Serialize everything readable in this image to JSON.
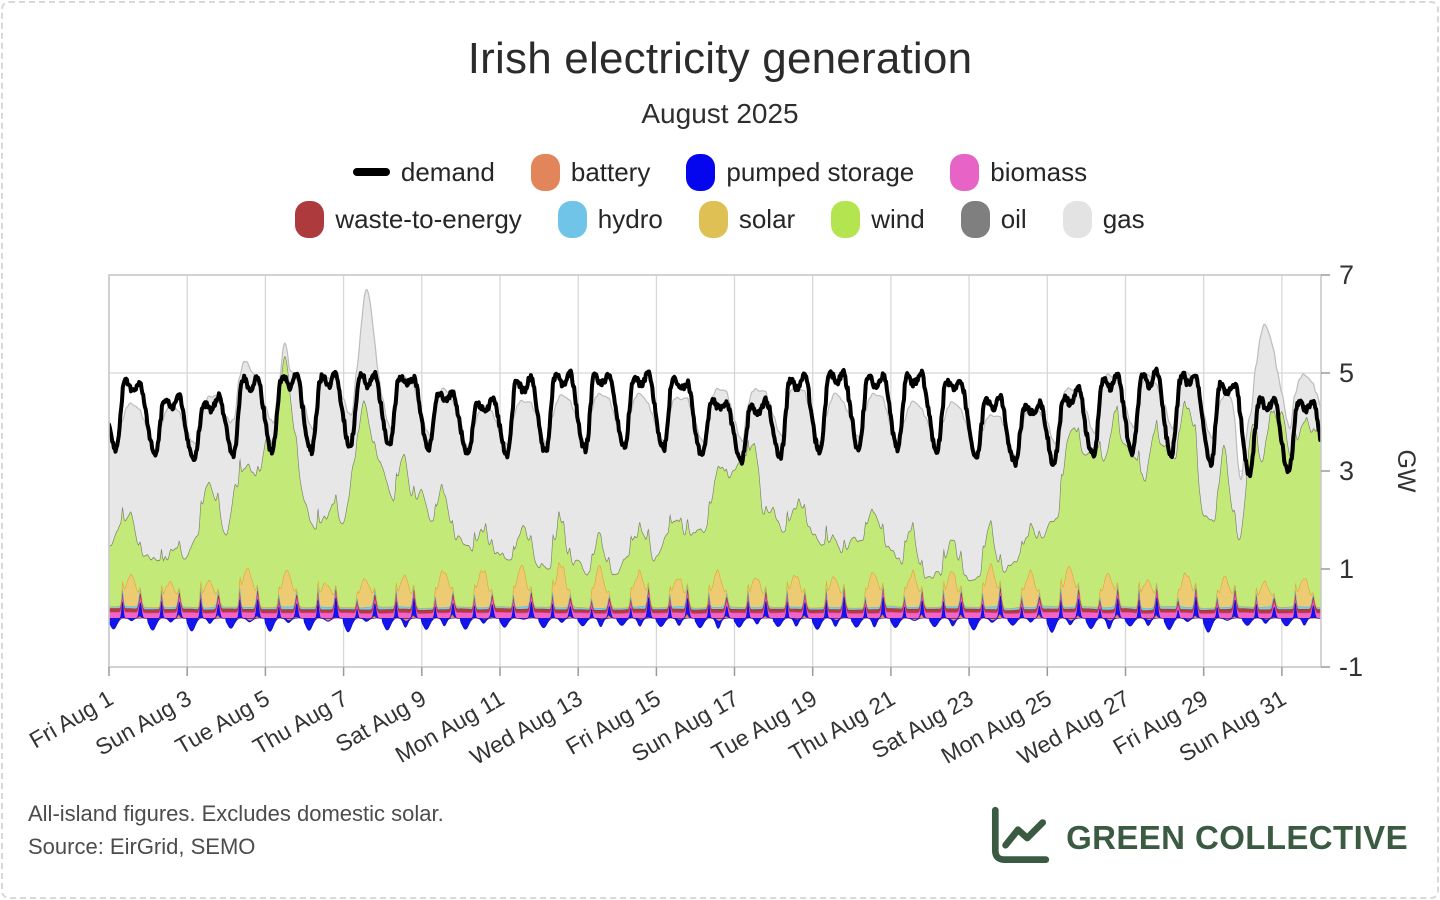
{
  "header": {
    "title": "Irish electricity generation",
    "subtitle": "August 2025"
  },
  "legend": {
    "rows": [
      [
        {
          "label": "demand",
          "color": "#000000",
          "type": "line"
        },
        {
          "label": "battery",
          "color": "#e2855b",
          "type": "box"
        },
        {
          "label": "pumped storage",
          "color": "#0606ee",
          "type": "box"
        },
        {
          "label": "biomass",
          "color": "#e763c5",
          "type": "box"
        }
      ],
      [
        {
          "label": "waste-to-energy",
          "color": "#ad3a3c",
          "type": "box"
        },
        {
          "label": "hydro",
          "color": "#6fc4e8",
          "type": "box"
        },
        {
          "label": "solar",
          "color": "#dfc054",
          "type": "box"
        },
        {
          "label": "wind",
          "color": "#b4e44f",
          "type": "box"
        },
        {
          "label": "oil",
          "color": "#7f7f7f",
          "type": "box"
        },
        {
          "label": "gas",
          "color": "#e3e3e3",
          "type": "box"
        }
      ]
    ]
  },
  "chart_data": {
    "type": "area",
    "stacked": true,
    "title": "Irish electricity generation",
    "subtitle": "August 2025",
    "ylabel": "GW",
    "ylim": [
      -1,
      7
    ],
    "yticks": [
      -1,
      1,
      3,
      5,
      7
    ],
    "grid": true,
    "legend_position": "top",
    "days_in_month": 31,
    "x_tick_days": [
      0,
      2,
      4,
      6,
      8,
      10,
      12,
      14,
      16,
      18,
      20,
      22,
      24,
      26,
      28,
      30
    ],
    "x_tick_labels": [
      "Fri Aug 1",
      "Sun Aug 3",
      "Tue Aug 5",
      "Thu Aug 7",
      "Sat Aug 9",
      "Mon Aug 11",
      "Wed Aug 13",
      "Fri Aug 15",
      "Sun Aug 17",
      "Tue Aug 19",
      "Thu Aug 21",
      "Sat Aug 23",
      "Mon Aug 25",
      "Wed Aug 27",
      "Fri Aug 29",
      "Sun Aug 31"
    ],
    "stack_order": [
      "battery",
      "pumped_storage",
      "biomass",
      "waste_to_energy",
      "hydro",
      "solar",
      "wind",
      "oil",
      "gas"
    ],
    "series": {
      "wind_daily_mean_gw": [
        1.3,
        0.7,
        1.9,
        2.1,
        3.1,
        1.6,
        3.2,
        2.5,
        1.7,
        1.0,
        0.9,
        0.8,
        0.7,
        0.9,
        1.3,
        2.2,
        2.4,
        1.5,
        1.0,
        1.4,
        0.8,
        0.6,
        0.7,
        1.0,
        2.6,
        2.9,
        2.5,
        2.9,
        2.1,
        3.3,
        2.9
      ],
      "solar_daily_peak_gw": [
        0.7,
        0.5,
        0.6,
        0.8,
        0.7,
        0.5,
        0.6,
        0.6,
        0.8,
        0.8,
        0.8,
        0.9,
        0.8,
        0.7,
        0.6,
        0.7,
        0.6,
        0.7,
        0.6,
        0.7,
        0.7,
        0.7,
        0.8,
        0.7,
        0.8,
        0.7,
        0.6,
        0.7,
        0.6,
        0.5,
        0.6
      ],
      "generation_total_daily_mean_gw": [
        4.1,
        4.0,
        4.2,
        4.5,
        4.7,
        4.5,
        4.9,
        4.6,
        4.3,
        4.0,
        4.15,
        4.2,
        4.25,
        4.2,
        4.2,
        4.35,
        4.35,
        4.4,
        4.2,
        4.3,
        4.1,
        4.1,
        3.9,
        3.95,
        4.4,
        4.6,
        4.55,
        4.65,
        4.2,
        4.9,
        4.6
      ],
      "demand_daily_max_gw": [
        4.9,
        4.5,
        4.4,
        4.9,
        4.95,
        4.95,
        5.0,
        5.0,
        4.6,
        4.4,
        4.9,
        5.0,
        5.0,
        5.0,
        4.9,
        4.45,
        4.35,
        4.9,
        5.0,
        5.0,
        5.0,
        4.9,
        4.5,
        4.35,
        4.6,
        4.9,
        5.0,
        5.0,
        4.9,
        4.5,
        4.45
      ],
      "demand_daily_min_gw": [
        3.45,
        3.3,
        3.25,
        3.35,
        3.4,
        3.4,
        3.45,
        3.5,
        3.4,
        3.3,
        3.35,
        3.4,
        3.45,
        3.45,
        3.4,
        3.25,
        3.2,
        3.3,
        3.4,
        3.45,
        3.4,
        3.4,
        3.2,
        3.1,
        3.15,
        3.3,
        3.35,
        3.35,
        3.0,
        2.9,
        3.0
      ],
      "biomass_gw": 0.11,
      "waste_to_energy_gw": 0.07,
      "hydro_gw": 0.04,
      "oil_gw": 0.012,
      "battery_peak_gw": 0.08,
      "pumped_storage_peak_gw": 0.45,
      "pumped_storage_min_gw": -0.45,
      "total_events": [
        {
          "day": 6.6,
          "amp_gw": 1.4,
          "width_days": 0.15
        },
        {
          "day": 3.4,
          "amp_gw": 0.45,
          "width_days": 0.2
        },
        {
          "day": 28.93,
          "amp_gw": -1.5,
          "width_days": 0.1
        },
        {
          "day": 29.55,
          "amp_gw": 0.7,
          "width_days": 0.2
        }
      ],
      "wind_events": [
        {
          "day": 4.35,
          "amp_gw": 0.7,
          "width_days": 0.18
        },
        {
          "day": 6.6,
          "amp_gw": 0.6,
          "width_days": 0.2
        },
        {
          "day": 28.93,
          "amp_gw": -1.1,
          "width_days": 0.12
        }
      ]
    },
    "colors": {
      "demand": "#000000",
      "battery_fill": "#ec8b5f",
      "battery_edge": "#e0662f",
      "pumped_fill": "#1414ef",
      "pumped_edge": "#0b0bd0",
      "biomass_fill": "#f163c5",
      "biomass_edge": "#e040ae",
      "waste_fill": "#b23c3c",
      "waste_edge": "#9e3131",
      "hydro_fill": "#79c9e9",
      "hydro_edge": "#54b9e2",
      "solar_fill": "#edcb72",
      "solar_edge": "#dfa62e",
      "wind_fill": "#c3e979",
      "wind_edge": "#a2d839",
      "oil_fill": "#8a8a8a",
      "oil_edge": "#7a7a7a",
      "gas_fill": "#e7e7e7",
      "gas_edge": "#bcbcbc",
      "grid": "#d7d7d7",
      "frame": "#c9c9c9",
      "tick_text": "#333333"
    }
  },
  "footnote": {
    "line1": "All-island figures. Excludes domestic solar.",
    "line2": "Source: EirGrid, SEMO"
  },
  "brand": {
    "name": "GREEN COLLECTIVE",
    "color": "#3a5a42"
  }
}
